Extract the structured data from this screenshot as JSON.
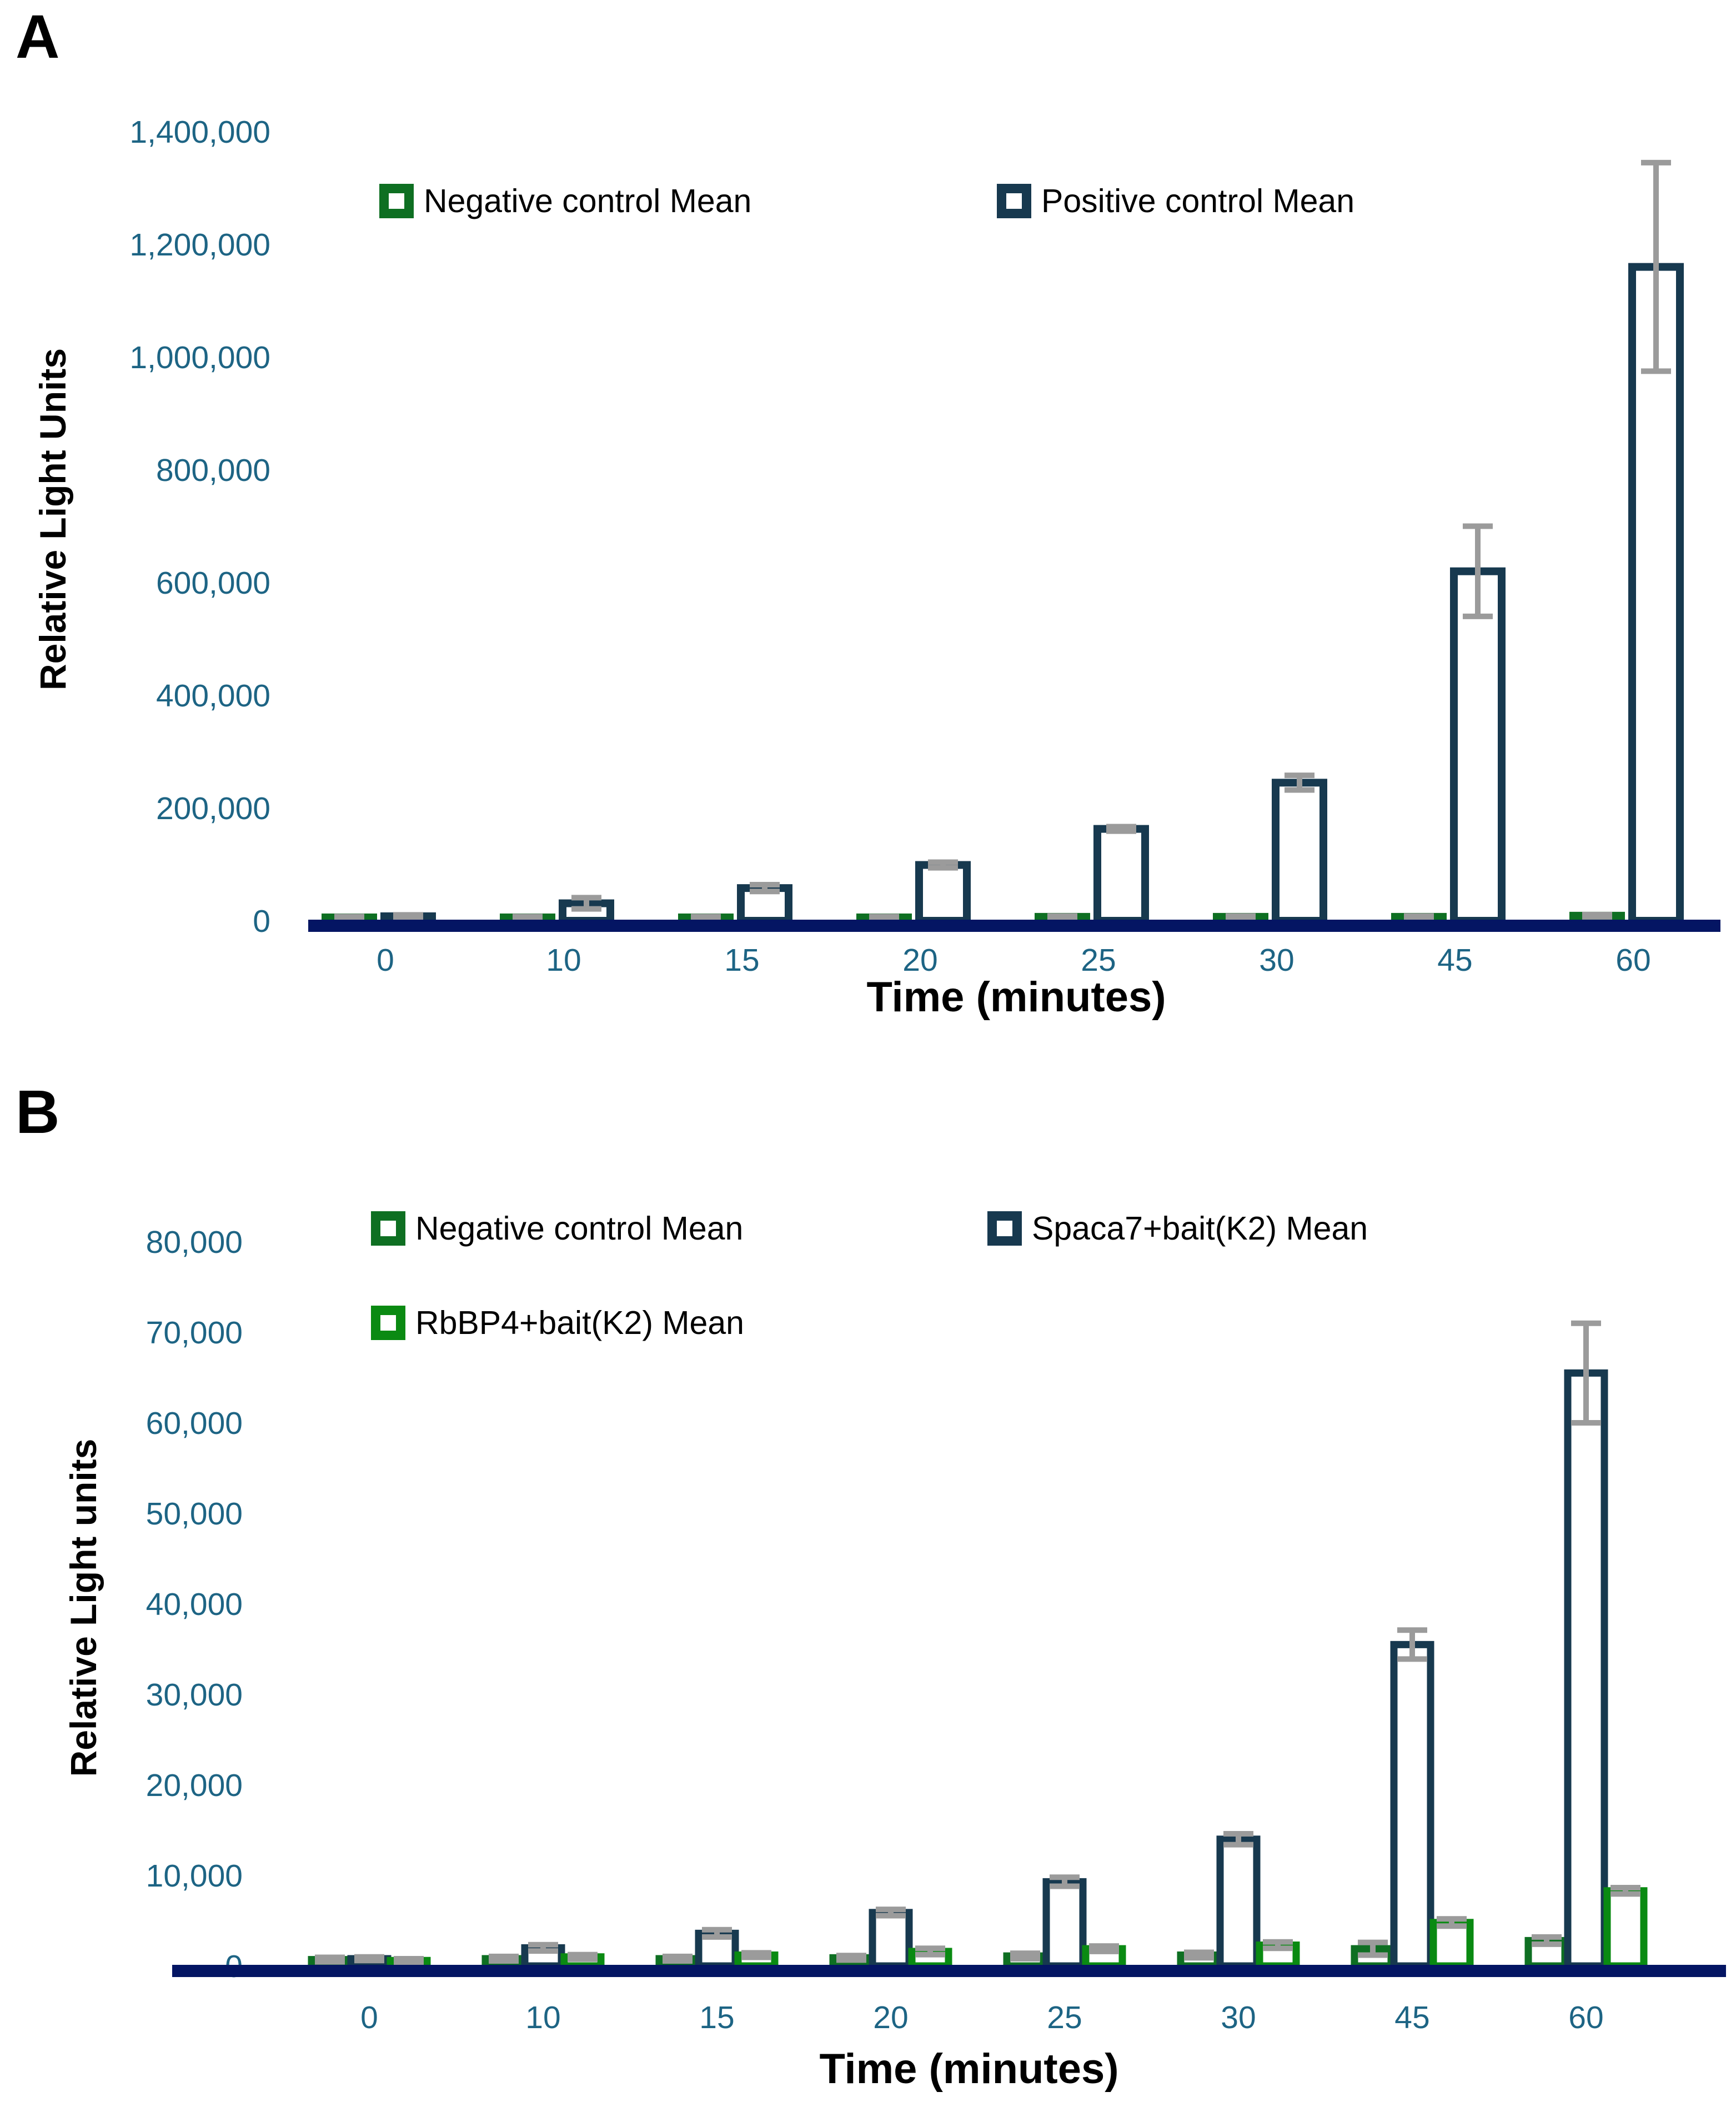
{
  "panels": {
    "a": {
      "letter": "A"
    },
    "b": {
      "letter": "B"
    }
  },
  "colors": {
    "axis_line": "#041563",
    "tick_label": "#1D6484",
    "error_bar": "#9B9B9B",
    "negative_green": "#0E6F22",
    "bait_green": "#0A8A12",
    "control_navy": "#17394F",
    "text": "#000000"
  },
  "chart_data": [
    {
      "id": "A",
      "type": "bar",
      "title": "",
      "xlabel": "Time (minutes)",
      "ylabel": "Relative Light Units",
      "categories": [
        "0",
        "10",
        "15",
        "20",
        "25",
        "30",
        "45",
        "60"
      ],
      "ylim": [
        0,
        1400000
      ],
      "ytick_step": 200000,
      "grid": false,
      "legend_position": "top-inside",
      "series": [
        {
          "name": "Negative control Mean",
          "color": "#0E6F22",
          "values": [
            6000,
            6000,
            6000,
            6000,
            7000,
            7000,
            7000,
            9000
          ],
          "errors": [
            1500,
            1500,
            1500,
            1500,
            1500,
            1500,
            1500,
            2000
          ]
        },
        {
          "name": "Positive  control Mean",
          "color": "#17394F",
          "values": [
            8000,
            31000,
            58000,
            99000,
            163000,
            245000,
            620000,
            1160000
          ],
          "errors": [
            2500,
            10000,
            6000,
            5000,
            4000,
            13000,
            80000,
            185000
          ]
        }
      ]
    },
    {
      "id": "B",
      "type": "bar",
      "title": "",
      "xlabel": "Time (minutes)",
      "ylabel": "Relative Light units",
      "categories": [
        "0",
        "10",
        "15",
        "20",
        "25",
        "30",
        "45",
        "60"
      ],
      "ylim": [
        0,
        80000
      ],
      "ytick_step": 10000,
      "grid": false,
      "legend_position": "top-inside",
      "series": [
        {
          "name": "Negative control Mean",
          "color": "#0E6F22",
          "values": [
            700,
            800,
            800,
            900,
            1100,
            1200,
            1900,
            2800
          ],
          "errors": [
            250,
            250,
            250,
            250,
            300,
            300,
            700,
            400
          ]
        },
        {
          "name": "Spaca7+bait(K2) Mean",
          "color": "#17394F",
          "values": [
            800,
            2000,
            3600,
            5900,
            9300,
            14000,
            35500,
            65500
          ],
          "errors": [
            200,
            350,
            400,
            350,
            500,
            600,
            1600,
            5500
          ]
        },
        {
          "name": "RbBP4+bait(K2) Mean",
          "color": "#0A8A12",
          "values": [
            600,
            1000,
            1200,
            1600,
            1900,
            2300,
            4800,
            8300
          ],
          "errors": [
            200,
            250,
            250,
            350,
            300,
            350,
            400,
            350
          ]
        }
      ]
    }
  ]
}
